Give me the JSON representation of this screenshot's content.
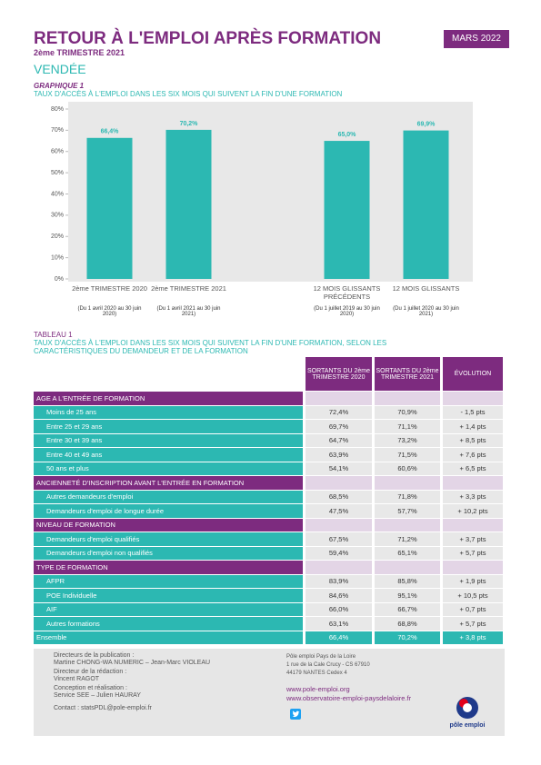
{
  "header": {
    "title": "RETOUR À L'EMPLOI APRÈS FORMATION",
    "subtitle": "2ème TRIMESTRE 2021",
    "date": "MARS 2022",
    "region": "VENDÉE"
  },
  "graphic": {
    "label": "GRAPHIQUE 1",
    "caption": "TAUX D'ACCÈS À L'EMPLOI DANS LES SIX MOIS QUI SUIVENT LA FIN D'UNE FORMATION"
  },
  "chart_data": {
    "type": "bar",
    "categories": [
      "2ème TRIMESTRE 2020",
      "2ème TRIMESTRE 2021",
      null,
      "12 MOIS GLISSANTS PRÉCÉDENTS",
      "12 MOIS GLISSANTS"
    ],
    "values": [
      66.4,
      70.2,
      null,
      65.0,
      69.9
    ],
    "value_labels": [
      "66,4%",
      "70,2%",
      null,
      "65,0%",
      "69,9%"
    ],
    "periods": [
      "(Du 1 avril 2020 au 30 juin 2020)",
      "(Du 1 avril 2021 au 30 juin 2021)",
      null,
      "(Du 1 juillet 2019 au 30 juin 2020)",
      "(Du 1 juillet 2020 au 30 juin 2021)"
    ],
    "color": "#2cb8b2",
    "ylim": [
      0,
      80
    ],
    "yticks": [
      {
        "value": 0,
        "label": "0%"
      },
      {
        "value": 10,
        "label": "10%"
      },
      {
        "value": 20,
        "label": "20%"
      },
      {
        "value": 30,
        "label": "30%"
      },
      {
        "value": 40,
        "label": "40%"
      },
      {
        "value": 50,
        "label": "50%"
      },
      {
        "value": 60,
        "label": "60%"
      },
      {
        "value": 70,
        "label": "70%"
      },
      {
        "value": 80,
        "label": "80%"
      }
    ],
    "grid": false
  },
  "table": {
    "label": "TABLEAU 1",
    "caption": "TAUX D'ACCÈS À L'EMPLOI DANS LES SIX MOIS QUI SUIVENT LA FIN D'UNE FORMATION, SELON LES CARACTÉRISTIQUES DU DEMANDEUR ET DE LA FORMATION",
    "columns": [
      "SORTANTS DU 2ème TRIMESTRE 2020",
      "SORTANTS DU 2ème TRIMESTRE 2021",
      "ÉVOLUTION"
    ],
    "sections": [
      {
        "title": "AGE A L'ENTRÉE DE FORMATION",
        "rows": [
          [
            "Moins de 25 ans",
            "72,4%",
            "70,9%",
            "- 1,5 pts"
          ],
          [
            "Entre 25 et 29 ans",
            "69,7%",
            "71,1%",
            "+ 1,4 pts"
          ],
          [
            "Entre 30 et 39 ans",
            "64,7%",
            "73,2%",
            "+ 8,5 pts"
          ],
          [
            "Entre 40 et 49 ans",
            "63,9%",
            "71,5%",
            "+ 7,6 pts"
          ],
          [
            "50 ans et plus",
            "54,1%",
            "60,6%",
            "+ 6,5 pts"
          ]
        ]
      },
      {
        "title": "ANCIENNETÉ D'INSCRIPTION AVANT L'ENTRÉE EN FORMATION",
        "rows": [
          [
            "Autres demandeurs d'emploi",
            "68,5%",
            "71,8%",
            "+ 3,3 pts"
          ],
          [
            "Demandeurs d'emploi de longue durée",
            "47,5%",
            "57,7%",
            "+ 10,2 pts"
          ]
        ]
      },
      {
        "title": "NIVEAU DE FORMATION",
        "rows": [
          [
            "Demandeurs d'emploi qualifiés",
            "67,5%",
            "71,2%",
            "+ 3,7 pts"
          ],
          [
            "Demandeurs d'emploi non qualifiés",
            "59,4%",
            "65,1%",
            "+ 5,7 pts"
          ]
        ]
      },
      {
        "title": "TYPE DE FORMATION",
        "rows": [
          [
            "AFPR",
            "83,9%",
            "85,8%",
            "+ 1,9 pts"
          ],
          [
            "POE Individuelle",
            "84,6%",
            "95,1%",
            "+ 10,5 pts"
          ],
          [
            "AIF",
            "66,0%",
            "66,7%",
            "+ 0,7 pts"
          ],
          [
            "Autres formations",
            "63,1%",
            "68,8%",
            "+ 5,7 pts"
          ]
        ]
      }
    ],
    "total": [
      "Ensemble",
      "66,4%",
      "70,2%",
      "+ 3,8 pts"
    ]
  },
  "footer": {
    "left": [
      "Directeurs de la publication :",
      "Martine CHONG-WA NUMERIC – Jean-Marc VIOLEAU",
      "Directeur de la rédaction :",
      "Vincent RAGOT",
      "Conception et réalisation :",
      "Service SEE – Julien HAURAY",
      "Contact : statsPDL@pole-emploi.fr"
    ],
    "address": [
      "Pôle emploi Pays de la Loire",
      "1 rue de la Cale Crucy - CS 67910",
      "44179 NANTES Cedex 4"
    ],
    "links": [
      "www.pole-emploi.org",
      "www.observatoire-emploi-paysdelaloire.fr"
    ],
    "logo": "pôle emploi"
  }
}
